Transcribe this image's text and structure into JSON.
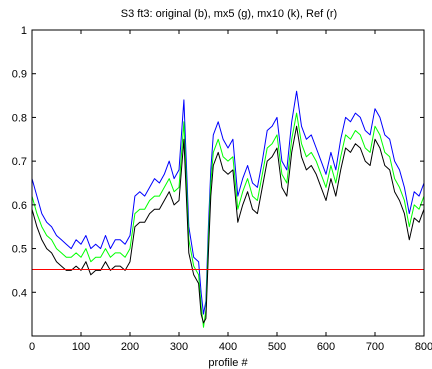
{
  "chart_data": {
    "type": "line",
    "title": "S3    ft3:  original (b),    mx5 (g),   mx10 (k),   Ref (r)",
    "xlabel": "profile #",
    "ylabel": "",
    "xlim": [
      0,
      800
    ],
    "ylim": [
      0.3,
      1.0
    ],
    "xticks": [
      0,
      100,
      200,
      300,
      400,
      500,
      600,
      700,
      800
    ],
    "yticks": [
      0.4,
      0.5,
      0.6,
      0.7,
      0.8,
      0.9,
      1
    ],
    "xtick_labels": [
      "0",
      "100",
      "200",
      "300",
      "400",
      "500",
      "600",
      "700",
      "800"
    ],
    "ytick_labels": [
      "0.4",
      "0.5",
      "0.6",
      "0.7",
      "0.8",
      "0.9",
      "1"
    ],
    "grid": false,
    "x": [
      0,
      10,
      20,
      30,
      40,
      50,
      60,
      70,
      80,
      90,
      100,
      110,
      120,
      130,
      140,
      150,
      160,
      170,
      180,
      190,
      200,
      210,
      220,
      230,
      240,
      250,
      260,
      270,
      280,
      290,
      300,
      310,
      320,
      330,
      340,
      345,
      350,
      355,
      360,
      365,
      370,
      380,
      390,
      400,
      410,
      420,
      430,
      440,
      450,
      460,
      470,
      480,
      490,
      500,
      510,
      520,
      530,
      540,
      550,
      560,
      570,
      580,
      590,
      600,
      610,
      620,
      630,
      640,
      650,
      660,
      670,
      680,
      690,
      700,
      710,
      720,
      730,
      740,
      750,
      760,
      770,
      780,
      790,
      800
    ],
    "series": [
      {
        "color": "#0000ff",
        "values": [
          0.66,
          0.62,
          0.58,
          0.56,
          0.55,
          0.53,
          0.52,
          0.51,
          0.5,
          0.52,
          0.51,
          0.53,
          0.5,
          0.51,
          0.5,
          0.53,
          0.5,
          0.52,
          0.52,
          0.51,
          0.53,
          0.62,
          0.63,
          0.62,
          0.64,
          0.66,
          0.65,
          0.67,
          0.7,
          0.66,
          0.68,
          0.84,
          0.55,
          0.48,
          0.47,
          0.4,
          0.35,
          0.38,
          0.55,
          0.68,
          0.76,
          0.79,
          0.75,
          0.73,
          0.75,
          0.62,
          0.66,
          0.69,
          0.65,
          0.64,
          0.7,
          0.77,
          0.78,
          0.8,
          0.7,
          0.68,
          0.79,
          0.86,
          0.78,
          0.75,
          0.76,
          0.73,
          0.7,
          0.67,
          0.72,
          0.68,
          0.75,
          0.8,
          0.79,
          0.81,
          0.8,
          0.77,
          0.76,
          0.82,
          0.8,
          0.76,
          0.75,
          0.7,
          0.68,
          0.64,
          0.58,
          0.63,
          0.62,
          0.65
        ]
      },
      {
        "color": "#00ff00",
        "values": [
          0.62,
          0.58,
          0.55,
          0.53,
          0.52,
          0.5,
          0.49,
          0.48,
          0.48,
          0.49,
          0.48,
          0.5,
          0.47,
          0.48,
          0.48,
          0.5,
          0.48,
          0.49,
          0.49,
          0.48,
          0.5,
          0.58,
          0.59,
          0.59,
          0.61,
          0.62,
          0.62,
          0.64,
          0.66,
          0.63,
          0.64,
          0.79,
          0.52,
          0.46,
          0.44,
          0.37,
          0.32,
          0.36,
          0.52,
          0.65,
          0.72,
          0.75,
          0.71,
          0.7,
          0.71,
          0.59,
          0.63,
          0.66,
          0.62,
          0.61,
          0.67,
          0.73,
          0.74,
          0.76,
          0.67,
          0.65,
          0.75,
          0.81,
          0.74,
          0.71,
          0.72,
          0.7,
          0.67,
          0.64,
          0.69,
          0.65,
          0.71,
          0.76,
          0.75,
          0.77,
          0.76,
          0.73,
          0.72,
          0.78,
          0.76,
          0.72,
          0.71,
          0.66,
          0.64,
          0.61,
          0.55,
          0.6,
          0.59,
          0.62
        ]
      },
      {
        "color": "#000000",
        "values": [
          0.59,
          0.55,
          0.52,
          0.5,
          0.49,
          0.47,
          0.46,
          0.45,
          0.45,
          0.46,
          0.45,
          0.47,
          0.44,
          0.45,
          0.45,
          0.47,
          0.45,
          0.46,
          0.46,
          0.45,
          0.47,
          0.55,
          0.56,
          0.56,
          0.58,
          0.59,
          0.59,
          0.61,
          0.63,
          0.6,
          0.61,
          0.75,
          0.49,
          0.44,
          0.42,
          0.35,
          0.33,
          0.34,
          0.49,
          0.62,
          0.69,
          0.72,
          0.68,
          0.67,
          0.68,
          0.56,
          0.6,
          0.63,
          0.59,
          0.58,
          0.64,
          0.7,
          0.71,
          0.73,
          0.64,
          0.62,
          0.72,
          0.78,
          0.71,
          0.68,
          0.69,
          0.67,
          0.64,
          0.61,
          0.66,
          0.62,
          0.68,
          0.73,
          0.72,
          0.74,
          0.73,
          0.7,
          0.69,
          0.75,
          0.73,
          0.69,
          0.68,
          0.63,
          0.61,
          0.58,
          0.52,
          0.57,
          0.56,
          0.59
        ]
      }
    ],
    "reference_line": {
      "y": 0.452,
      "color": "#ff0000"
    }
  }
}
